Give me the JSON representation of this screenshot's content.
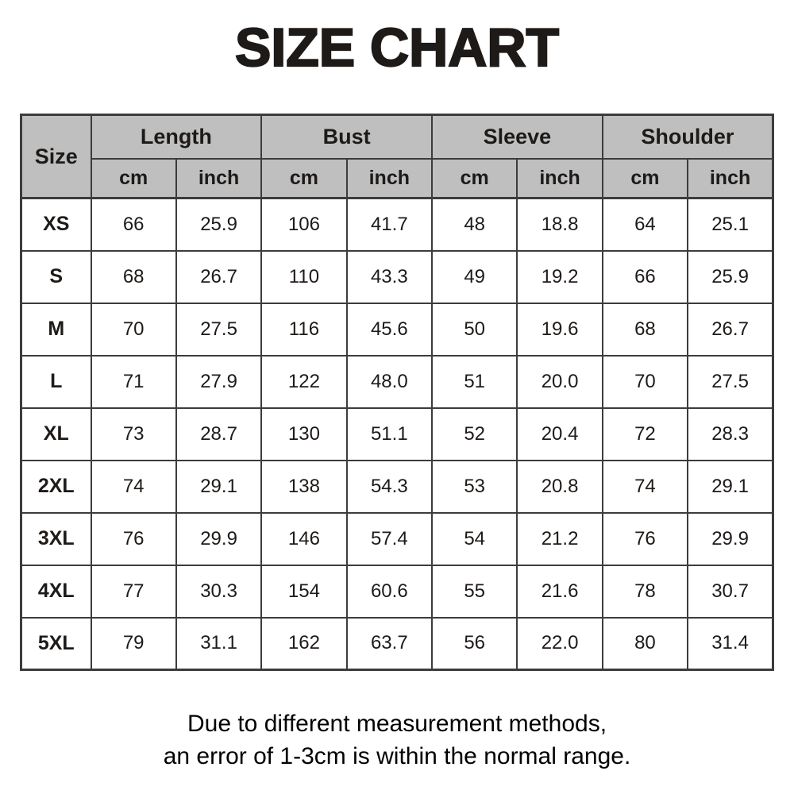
{
  "title": "SIZE CHART",
  "header": {
    "size_label": "Size",
    "groups": [
      "Length",
      "Bust",
      "Sleeve",
      "Shoulder"
    ],
    "units": [
      "cm",
      "inch"
    ]
  },
  "chart_data": {
    "type": "table",
    "title": "SIZE CHART",
    "columns": [
      "Size",
      "Length cm",
      "Length inch",
      "Bust cm",
      "Bust inch",
      "Sleeve cm",
      "Sleeve inch",
      "Shoulder cm",
      "Shoulder inch"
    ],
    "rows": [
      [
        "XS",
        "66",
        "25.9",
        "106",
        "41.7",
        "48",
        "18.8",
        "64",
        "25.1"
      ],
      [
        "S",
        "68",
        "26.7",
        "110",
        "43.3",
        "49",
        "19.2",
        "66",
        "25.9"
      ],
      [
        "M",
        "70",
        "27.5",
        "116",
        "45.6",
        "50",
        "19.6",
        "68",
        "26.7"
      ],
      [
        "L",
        "71",
        "27.9",
        "122",
        "48.0",
        "51",
        "20.0",
        "70",
        "27.5"
      ],
      [
        "XL",
        "73",
        "28.7",
        "130",
        "51.1",
        "52",
        "20.4",
        "72",
        "28.3"
      ],
      [
        "2XL",
        "74",
        "29.1",
        "138",
        "54.3",
        "53",
        "20.8",
        "74",
        "29.1"
      ],
      [
        "3XL",
        "76",
        "29.9",
        "146",
        "57.4",
        "54",
        "21.2",
        "76",
        "29.9"
      ],
      [
        "4XL",
        "77",
        "30.3",
        "154",
        "60.6",
        "55",
        "21.6",
        "78",
        "30.7"
      ],
      [
        "5XL",
        "79",
        "31.1",
        "162",
        "63.7",
        "56",
        "22.0",
        "80",
        "31.4"
      ]
    ]
  },
  "footer": {
    "line1": "Due to different measurement methods,",
    "line2": "an error of 1-3cm is within the normal range."
  },
  "colors": {
    "header_bg": "#bfbfbf",
    "border": "#3c3c3c",
    "text": "#1e1a18",
    "background": "#ffffff"
  }
}
